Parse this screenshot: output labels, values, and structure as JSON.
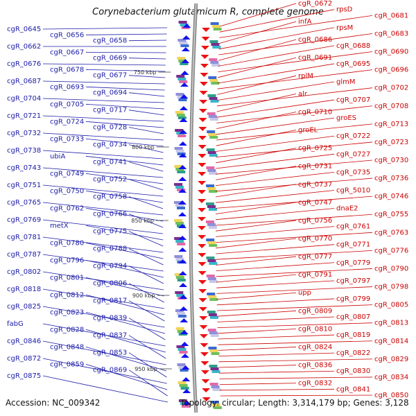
{
  "title": "Corynebacterium glutamicum R, complete genome",
  "accession_text": "Accession: NC_009342",
  "summary_text": "Topology: circular; Length: 3,314,179 bp; Genes: 3,128",
  "colors": {
    "left_label": "#1a1aa8",
    "right_label": "#cc0000",
    "ruler": "#333333"
  },
  "ruler_marks": [
    "750 kbp",
    "800 kbp",
    "850 kbp",
    "900 kbp",
    "950 kbp"
  ],
  "left_labels": [
    "cgR_0645",
    "cgR_0656",
    "cgR_0658",
    "cgR_0662",
    "cgR_0667",
    "cgR_0669",
    "cgR_0676",
    "cgR_0678",
    "cgR_0677",
    "cgR_0687",
    "cgR_0693",
    "cgR_0694",
    "cgR_0704",
    "cgR_0705",
    "cgR_0717",
    "cgR_0721",
    "cgR_0724",
    "cgR_0728",
    "cgR_0732",
    "cgR_0733",
    "cgR_0734",
    "cgR_0738",
    "ubiA",
    "cgR_0741",
    "cgR_0743",
    "cgR_0749",
    "cgR_0752",
    "cgR_0751",
    "cgR_0750",
    "cgR_0758",
    "cgR_0765",
    "cgR_0762",
    "cgR_0766",
    "cgR_0769",
    "metX",
    "cgR_0775",
    "cgR_0781",
    "cgR_0780",
    "cgR_0788",
    "cgR_0787",
    "cgR_0796",
    "cgR_0794",
    "cgR_0802",
    "cgR_0801",
    "cgR_0806",
    "cgR_0818",
    "cgR_0812",
    "cgR_0817",
    "cgR_0825",
    "cgR_0823",
    "cgR_0839",
    "fabG",
    "cgR_0828",
    "cgR_0837",
    "cgR_0846",
    "cgR_0848",
    "cgR_0853",
    "cgR_0872",
    "cgR_0859",
    "cgR_0869",
    "cgR_0875"
  ],
  "right_labels": [
    "cgR_0672",
    "rpsD",
    "cgR_0681",
    "infA",
    "rpsM",
    "cgR_0683",
    "cgR_0686",
    "cgR_0688",
    "cgR_0690",
    "cgR_0691",
    "cgR_0695",
    "cgR_0696",
    "rplM",
    "glmM",
    "cgR_0702",
    "alr",
    "cgR_0707",
    "cgR_0708",
    "cgR_0710",
    "groES",
    "cgR_0713",
    "groEL",
    "cgR_0722",
    "cgR_0723",
    "cgR_0725",
    "cgR_0727",
    "cgR_0730",
    "cgR_0731",
    "cgR_0735",
    "cgR_0736",
    "cgR_0737",
    "cgR_5010",
    "cgR_0746",
    "cgR_0747",
    "dnaE2",
    "cgR_0755",
    "cgR_0756",
    "cgR_0761",
    "cgR_0763",
    "cgR_0770",
    "cgR_0771",
    "cgR_0776",
    "cgR_0777",
    "cgR_0779",
    "cgR_0790",
    "cgR_0791",
    "cgR_0797",
    "cgR_0798",
    "upp",
    "cgR_0799",
    "cgR_0805",
    "cgR_0809",
    "cgR_0807",
    "cgR_0813",
    "cgR_0810",
    "cgR_0819",
    "cgR_0814",
    "cgR_0824",
    "cgR_0822",
    "cgR_0829",
    "cgR_0836",
    "cgR_0830",
    "cgR_0834",
    "cgR_0832",
    "cgR_0841",
    "cgR_0850"
  ]
}
